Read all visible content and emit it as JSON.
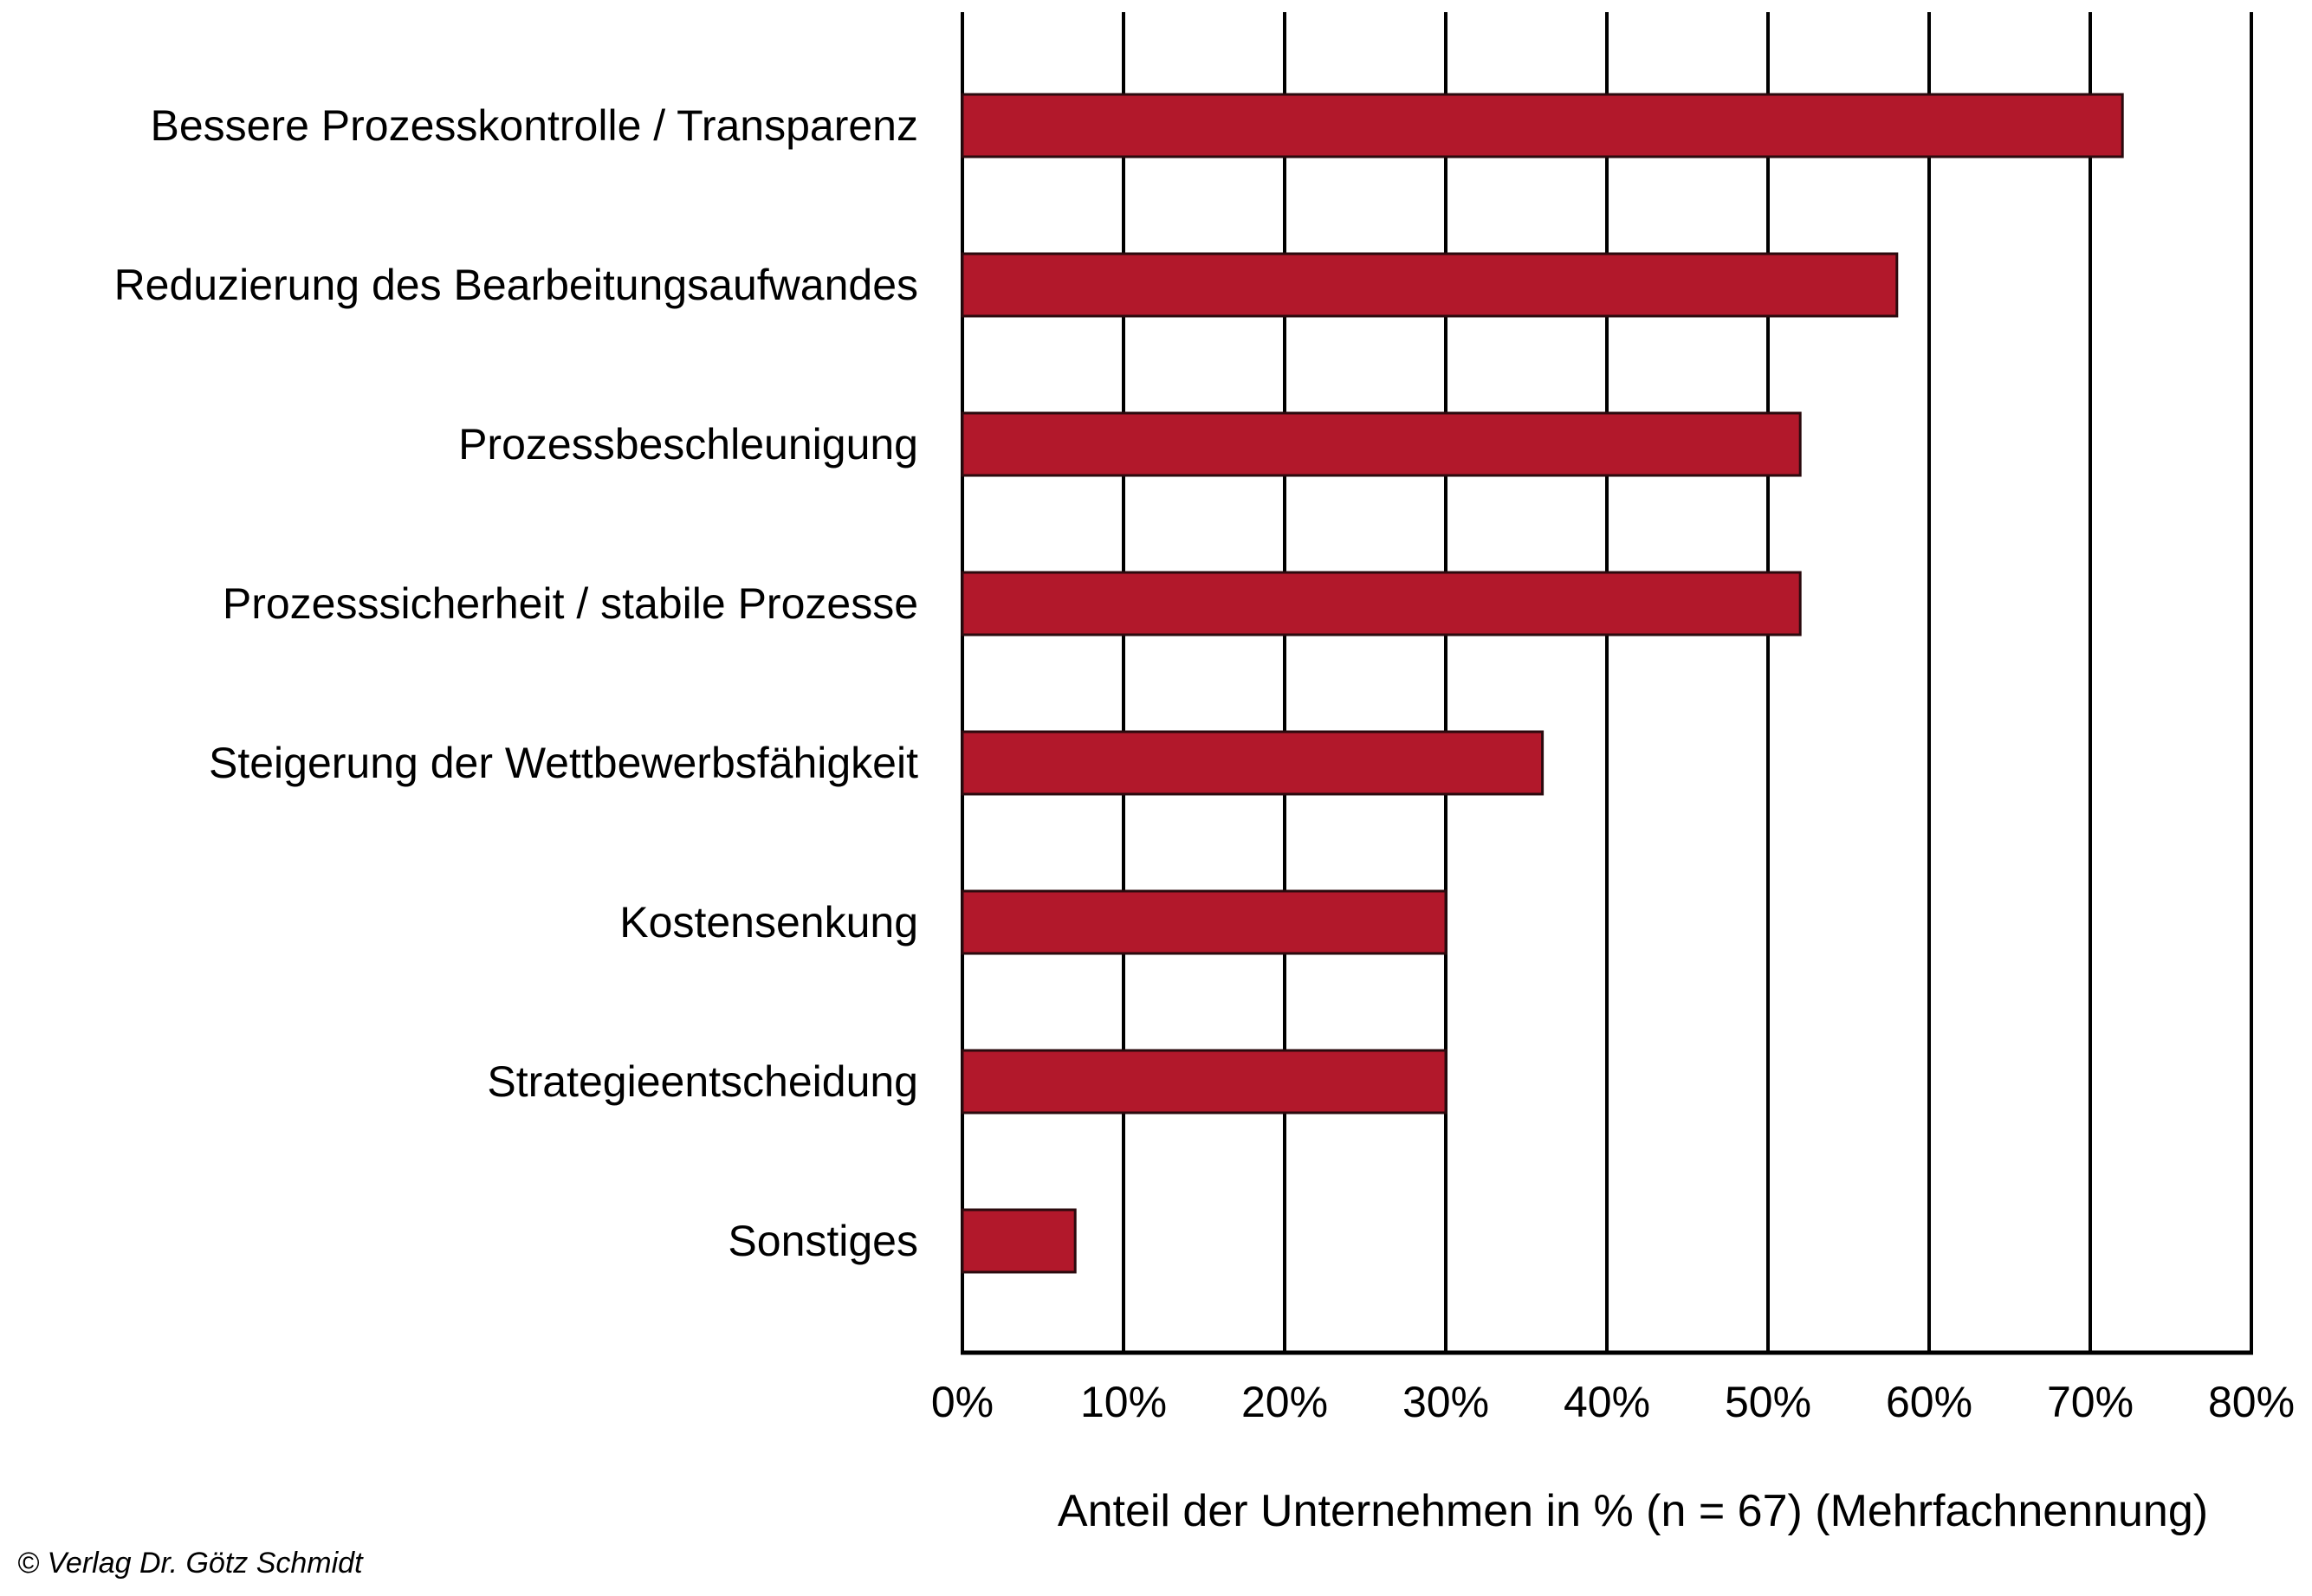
{
  "chart_data": {
    "type": "bar",
    "orientation": "horizontal",
    "title": "",
    "categories": [
      "Bessere Prozesskontrolle / Transparenz",
      "Reduzierung des Bearbeitungsaufwandes",
      "Prozessbeschleunigung",
      "Prozesssicherheit / stabile Prozesse",
      "Steigerung der Wettbewerbsfähigkeit",
      "Kostensenkung",
      "Strategieentscheidung",
      "Sonstiges"
    ],
    "values": [
      72,
      58,
      52,
      52,
      36,
      30,
      30,
      7
    ],
    "xlabel": "Anteil der Unternehmen in % (n = 67) (Mehrfachnennung)",
    "ylabel": "",
    "xlim": [
      0,
      80
    ],
    "xticks": [
      0,
      10,
      20,
      30,
      40,
      50,
      60,
      70,
      80
    ],
    "xtick_labels": [
      "0%",
      "10%",
      "20%",
      "30%",
      "40%",
      "50%",
      "60%",
      "70%",
      "80%"
    ],
    "grid": "vertical",
    "legend": "none",
    "bar_color": "#b2182b",
    "bar_edge_color": "#2b0a0e"
  },
  "footer": {
    "copyright": "© Verlag Dr. Götz Schmidt"
  }
}
